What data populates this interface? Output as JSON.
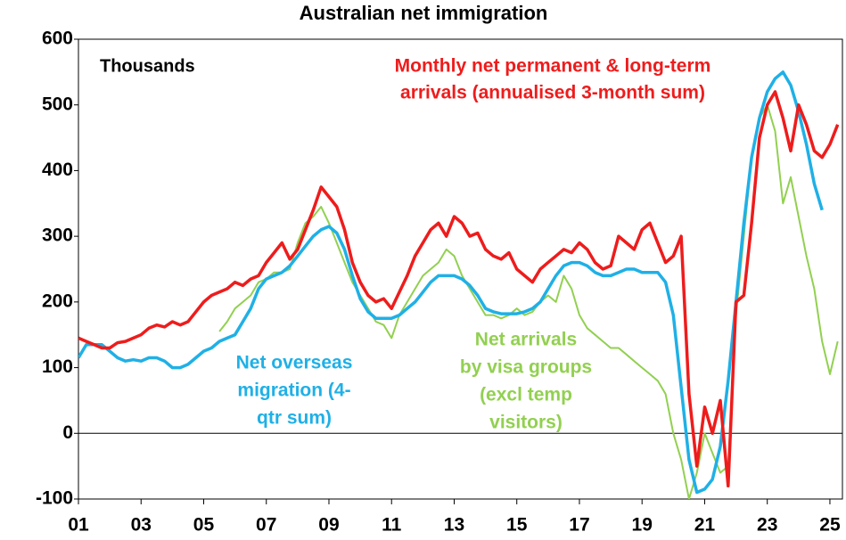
{
  "chart_data": {
    "type": "line",
    "title": "Australian net immigration",
    "y_label": "Thousands",
    "annotations": [
      {
        "lines": [
          "Monthly net permanent & long-term",
          "arrivals (annualised 3-month sum)"
        ],
        "color": "#ee1c1c"
      },
      {
        "lines": [
          "Net overseas",
          "migration (4-",
          "qtr sum)"
        ],
        "color": "#1fb0e6"
      },
      {
        "lines": [
          "Net arrivals",
          "by visa groups",
          "(excl temp",
          "visitors)"
        ],
        "color": "#92d050"
      }
    ],
    "xlim": [
      2001,
      2025.4
    ],
    "xticks": [
      {
        "value": 2001,
        "label": "01"
      },
      {
        "value": 2003,
        "label": "03"
      },
      {
        "value": 2005,
        "label": "05"
      },
      {
        "value": 2007,
        "label": "07"
      },
      {
        "value": 2009,
        "label": "09"
      },
      {
        "value": 2011,
        "label": "11"
      },
      {
        "value": 2013,
        "label": "13"
      },
      {
        "value": 2015,
        "label": "15"
      },
      {
        "value": 2017,
        "label": "17"
      },
      {
        "value": 2019,
        "label": "19"
      },
      {
        "value": 2021,
        "label": "21"
      },
      {
        "value": 2023,
        "label": "23"
      },
      {
        "value": 2025,
        "label": "25"
      }
    ],
    "ylim": [
      -100,
      600
    ],
    "yticks": [
      -100,
      0,
      100,
      200,
      300,
      400,
      500,
      600
    ],
    "x": [
      2001,
      2001.25,
      2001.5,
      2001.75,
      2002,
      2002.25,
      2002.5,
      2002.75,
      2003,
      2003.25,
      2003.5,
      2003.75,
      2004,
      2004.25,
      2004.5,
      2004.75,
      2005,
      2005.25,
      2005.5,
      2005.75,
      2006,
      2006.25,
      2006.5,
      2006.75,
      2007,
      2007.25,
      2007.5,
      2007.75,
      2008,
      2008.25,
      2008.5,
      2008.75,
      2009,
      2009.25,
      2009.5,
      2009.75,
      2010,
      2010.25,
      2010.5,
      2010.75,
      2011,
      2011.25,
      2011.5,
      2011.75,
      2012,
      2012.25,
      2012.5,
      2012.75,
      2013,
      2013.25,
      2013.5,
      2013.75,
      2014,
      2014.25,
      2014.5,
      2014.75,
      2015,
      2015.25,
      2015.5,
      2015.75,
      2016,
      2016.25,
      2016.5,
      2016.75,
      2017,
      2017.25,
      2017.5,
      2017.75,
      2018,
      2018.25,
      2018.5,
      2018.75,
      2019,
      2019.25,
      2019.5,
      2019.75,
      2020,
      2020.25,
      2020.5,
      2020.75,
      2021,
      2021.25,
      2021.5,
      2021.75,
      2022,
      2022.25,
      2022.5,
      2022.75,
      2023,
      2023.25,
      2023.5,
      2023.75,
      2024,
      2024.25,
      2024.5,
      2024.75,
      2025,
      2025.25
    ],
    "series": [
      {
        "name": "Net arrivals by visa groups (excl temp visitors)",
        "color": "#92d050",
        "width": 2,
        "values": [
          null,
          null,
          null,
          null,
          null,
          null,
          null,
          null,
          null,
          null,
          null,
          null,
          null,
          null,
          null,
          null,
          null,
          null,
          155,
          170,
          190,
          200,
          210,
          230,
          235,
          245,
          245,
          250,
          290,
          320,
          330,
          345,
          320,
          290,
          260,
          230,
          210,
          190,
          170,
          165,
          145,
          180,
          200,
          220,
          240,
          250,
          260,
          280,
          270,
          240,
          220,
          200,
          180,
          180,
          175,
          180,
          190,
          180,
          185,
          200,
          210,
          200,
          240,
          220,
          180,
          160,
          150,
          140,
          130,
          130,
          120,
          110,
          100,
          90,
          80,
          60,
          0,
          -40,
          -100,
          -60,
          0,
          -30,
          -60,
          -50,
          180,
          300,
          420,
          480,
          500,
          460,
          350,
          390,
          330,
          270,
          220,
          140,
          90,
          140
        ]
      },
      {
        "name": "Net overseas migration (4-qtr sum)",
        "color": "#1fb0e6",
        "width": 3.5,
        "values": [
          115,
          135,
          135,
          135,
          125,
          115,
          110,
          112,
          110,
          115,
          115,
          110,
          100,
          100,
          105,
          115,
          125,
          130,
          140,
          145,
          150,
          170,
          190,
          220,
          235,
          240,
          245,
          255,
          270,
          285,
          300,
          310,
          315,
          305,
          280,
          240,
          205,
          185,
          175,
          175,
          175,
          180,
          190,
          200,
          215,
          230,
          240,
          240,
          240,
          235,
          225,
          210,
          190,
          185,
          182,
          182,
          182,
          185,
          190,
          200,
          220,
          240,
          255,
          260,
          260,
          255,
          245,
          240,
          240,
          245,
          250,
          250,
          245,
          245,
          245,
          230,
          180,
          70,
          -40,
          -90,
          -85,
          -70,
          -20,
          80,
          200,
          320,
          420,
          480,
          520,
          540,
          550,
          530,
          490,
          440,
          380,
          340,
          null,
          null
        ]
      },
      {
        "name": "Monthly net permanent & long-term arrivals (annualised 3-month sum)",
        "color": "#ee1c1c",
        "width": 3.5,
        "values": [
          145,
          140,
          135,
          130,
          130,
          138,
          140,
          145,
          150,
          160,
          165,
          162,
          170,
          165,
          170,
          185,
          200,
          210,
          215,
          220,
          230,
          225,
          235,
          240,
          260,
          275,
          290,
          265,
          280,
          310,
          340,
          375,
          360,
          345,
          310,
          260,
          230,
          210,
          200,
          205,
          190,
          215,
          240,
          270,
          290,
          310,
          320,
          300,
          330,
          320,
          300,
          305,
          280,
          270,
          265,
          275,
          250,
          240,
          230,
          250,
          260,
          270,
          280,
          275,
          290,
          280,
          260,
          250,
          255,
          300,
          290,
          280,
          310,
          320,
          290,
          260,
          270,
          300,
          60,
          -50,
          40,
          0,
          50,
          -80,
          200,
          210,
          320,
          450,
          500,
          520,
          480,
          430,
          500,
          470,
          430,
          420,
          440,
          470
        ]
      }
    ]
  }
}
